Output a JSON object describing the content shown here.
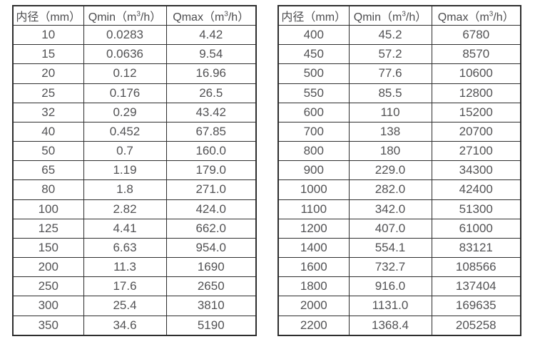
{
  "style": {
    "border_color": "#2e2e2e",
    "text_color": "#4c4c4e",
    "background_color": "#ffffff"
  },
  "tables": [
    {
      "name": "flow-range-table-dn10-350",
      "headers": [
        {
          "text": "内径（mm）"
        },
        {
          "parts": [
            "Qmin（m",
            "3",
            "/h）"
          ]
        },
        {
          "parts": [
            "Qmax（m",
            "3",
            "/h）"
          ]
        }
      ],
      "rows": [
        [
          "10",
          "0.0283",
          "4.42"
        ],
        [
          "15",
          "0.0636",
          "9.54"
        ],
        [
          "20",
          "0.12",
          "16.96"
        ],
        [
          "25",
          "0.176",
          "26.5"
        ],
        [
          "32",
          "0.29",
          "43.42"
        ],
        [
          "40",
          "0.452",
          "67.85"
        ],
        [
          "50",
          "0.7",
          "160.0"
        ],
        [
          "65",
          "1.19",
          "179.0"
        ],
        [
          "80",
          "1.8",
          "271.0"
        ],
        [
          "100",
          "2.82",
          "424.0"
        ],
        [
          "125",
          "4.41",
          "662.0"
        ],
        [
          "150",
          "6.63",
          "954.0"
        ],
        [
          "200",
          "11.3",
          "1690"
        ],
        [
          "250",
          "17.6",
          "2650"
        ],
        [
          "300",
          "25.4",
          "3810"
        ],
        [
          "350",
          "34.6",
          "5190"
        ]
      ]
    },
    {
      "name": "flow-range-table-dn400-2200",
      "headers": [
        {
          "text": "内径（mm）"
        },
        {
          "parts": [
            "Qmin（m",
            "3",
            "/h）"
          ]
        },
        {
          "parts": [
            "Qmax（m",
            "3",
            "/h）"
          ]
        }
      ],
      "rows": [
        [
          "400",
          "45.2",
          "6780"
        ],
        [
          "450",
          "57.2",
          "8570"
        ],
        [
          "500",
          "77.6",
          "10600"
        ],
        [
          "550",
          "85.5",
          "12800"
        ],
        [
          "600",
          "110",
          "15200"
        ],
        [
          "700",
          "138",
          "20700"
        ],
        [
          "800",
          "180",
          "27100"
        ],
        [
          "900",
          "229.0",
          "34300"
        ],
        [
          "1000",
          "282.0",
          "42400"
        ],
        [
          "1100",
          "342.0",
          "51300"
        ],
        [
          "1200",
          "407.0",
          "61000"
        ],
        [
          "1400",
          "554.1",
          "83121"
        ],
        [
          "1600",
          "732.7",
          "108566"
        ],
        [
          "1800",
          "916.0",
          "137404"
        ],
        [
          "2000",
          "1131.0",
          "169635"
        ],
        [
          "2200",
          "1368.4",
          "205258"
        ]
      ]
    }
  ]
}
